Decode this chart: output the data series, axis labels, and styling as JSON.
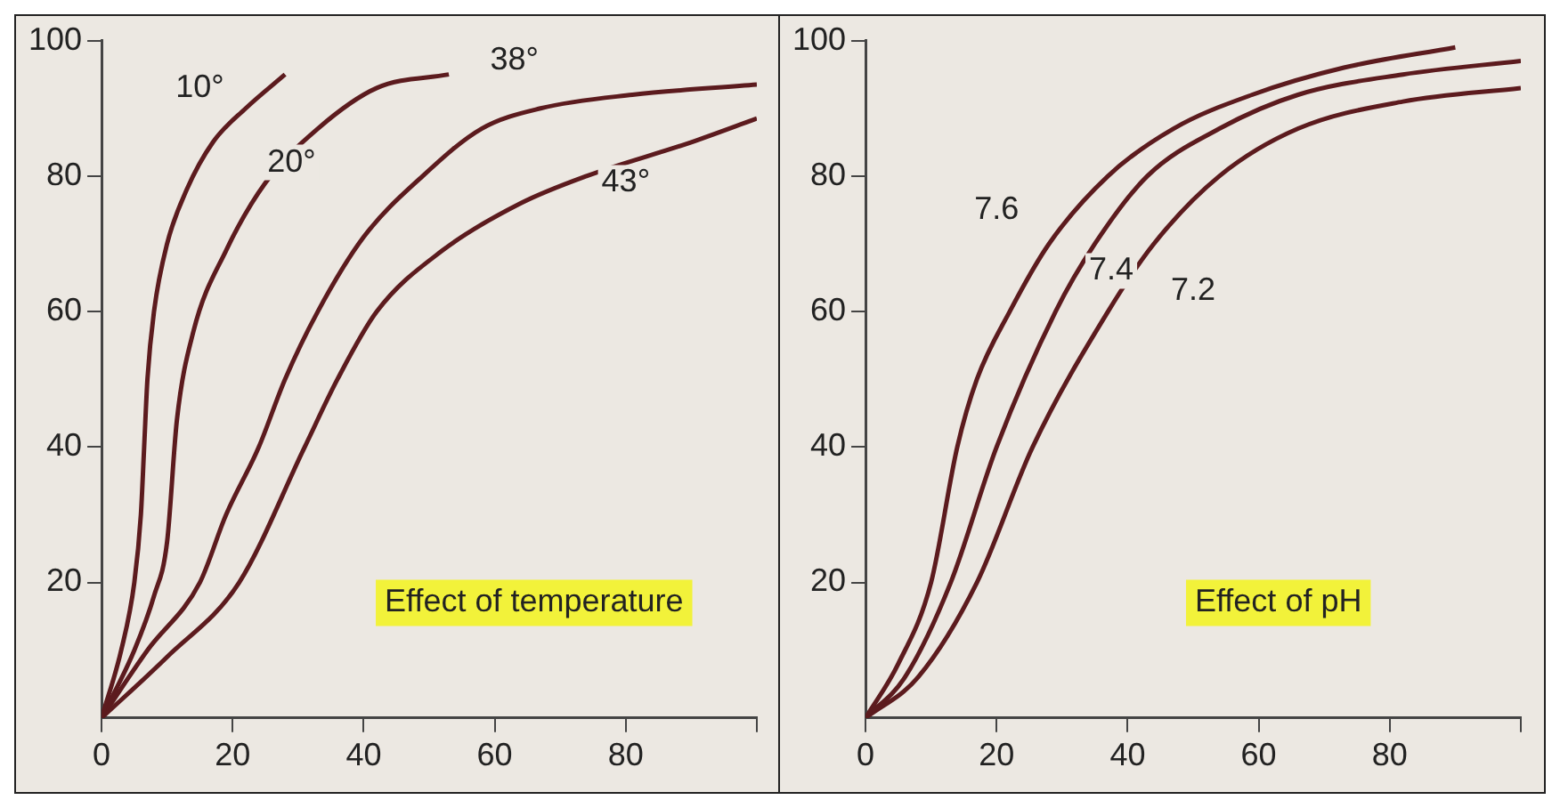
{
  "chart_data": [
    {
      "type": "line",
      "annotations": [
        "Effect of temperature"
      ],
      "xlim": [
        0,
        100
      ],
      "ylim": [
        0,
        100
      ],
      "xticks": [
        0,
        20,
        40,
        60,
        80,
        {
          "value": 100,
          "label": null
        }
      ],
      "yticks": [
        20,
        40,
        60,
        80,
        100
      ],
      "grid": false,
      "legend": false,
      "series": [
        {
          "name": "10°",
          "color": "#5c1b1e",
          "x": [
            0,
            3,
            5,
            6,
            6.5,
            7,
            8,
            10,
            13,
            17,
            22,
            28
          ],
          "values": [
            0,
            10,
            20,
            30,
            40,
            50,
            60,
            70,
            78,
            85,
            90,
            95
          ]
        },
        {
          "name": "20°",
          "color": "#5c1b1e",
          "x": [
            0,
            5,
            8,
            10,
            11.5,
            14,
            19,
            25,
            33,
            42,
            53
          ],
          "values": [
            0,
            10,
            18,
            26,
            44,
            57,
            69,
            79,
            87,
            93,
            95
          ]
        },
        {
          "name": "38°",
          "color": "#5c1b1e",
          "x": [
            0,
            7,
            15,
            19,
            24,
            28,
            33,
            40,
            49,
            58,
            67,
            81,
            100
          ],
          "values": [
            0,
            10,
            20,
            30,
            40,
            50,
            60,
            71,
            80,
            87,
            90,
            92,
            93.5
          ]
        },
        {
          "name": "43°",
          "color": "#5c1b1e",
          "x": [
            0,
            10,
            21,
            31,
            36,
            42,
            52,
            64,
            74,
            90,
            100
          ],
          "values": [
            0,
            9,
            20,
            40,
            50,
            60,
            69,
            76,
            80,
            85,
            88.5
          ]
        }
      ]
    },
    {
      "type": "line",
      "annotations": [
        "Effect of pH"
      ],
      "xlim": [
        0,
        100
      ],
      "ylim": [
        0,
        100
      ],
      "xticks": [
        0,
        20,
        40,
        60,
        80,
        {
          "value": 100,
          "label": null
        }
      ],
      "yticks": [
        20,
        40,
        60,
        80,
        100
      ],
      "grid": false,
      "legend": false,
      "series": [
        {
          "name": "7.6",
          "color": "#5c1b1e",
          "x": [
            0,
            5,
            10,
            14,
            17,
            22,
            28,
            37,
            47,
            59,
            73,
            90
          ],
          "values": [
            0,
            8,
            20,
            40,
            50,
            60,
            70,
            80,
            87,
            92,
            96,
            99
          ]
        },
        {
          "name": "7.4",
          "color": "#5c1b1e",
          "x": [
            0,
            6,
            13,
            20,
            29,
            35,
            43,
            54,
            66,
            82,
            100
          ],
          "values": [
            0,
            6,
            20,
            40,
            60,
            70,
            80,
            87,
            92,
            95,
            97
          ]
        },
        {
          "name": "7.2",
          "color": "#5c1b1e",
          "x": [
            0,
            8,
            17,
            25.5,
            37,
            44,
            54,
            66,
            82,
            100
          ],
          "values": [
            0,
            6,
            20,
            40,
            60,
            70,
            80,
            87,
            91,
            93
          ]
        }
      ]
    }
  ]
}
